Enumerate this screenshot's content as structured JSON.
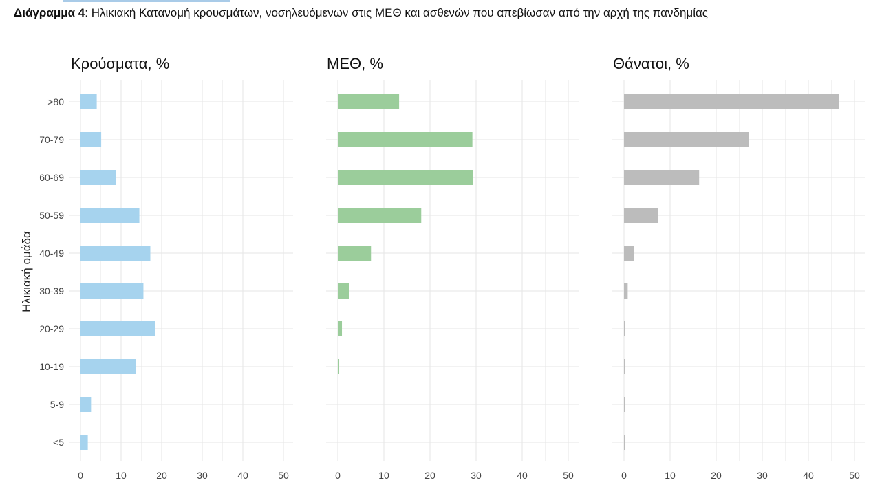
{
  "caption": {
    "label": "Διάγραμμα 4",
    "separator": ":",
    "text": " Ηλικιακή Κατανομή κρουσμάτων, νοσηλευόμενων στις ΜΕΘ και ασθενών που απεβίωσαν από την αρχή της πανδημίας"
  },
  "chart_data": [
    {
      "type": "bar",
      "orientation": "horizontal",
      "title": "Κρούσματα, %",
      "ylabel": "Ηλικιακή ομάδα",
      "xlabel": "",
      "categories": [
        ">80",
        "70-79",
        "60-69",
        "50-59",
        "40-49",
        "30-39",
        "20-29",
        "10-19",
        "5-9",
        "<5"
      ],
      "values": [
        4.0,
        5.1,
        8.7,
        14.5,
        17.2,
        15.5,
        18.4,
        13.6,
        2.6,
        1.8
      ],
      "xlim": [
        0,
        52
      ],
      "xticks": [
        0,
        10,
        20,
        30,
        40,
        50
      ],
      "color": "#a6d3ee",
      "grid": true
    },
    {
      "type": "bar",
      "orientation": "horizontal",
      "title": "ΜΕΘ, %",
      "xlabel": "",
      "categories": [
        ">80",
        "70-79",
        "60-69",
        "50-59",
        "40-49",
        "30-39",
        "20-29",
        "10-19",
        "5-9",
        "<5"
      ],
      "values": [
        13.3,
        29.2,
        29.4,
        18.1,
        7.2,
        2.5,
        0.9,
        0.3,
        0.1,
        0.1
      ],
      "xlim": [
        0,
        52
      ],
      "xticks": [
        0,
        10,
        20,
        30,
        40,
        50
      ],
      "color": "#9bcd9b",
      "grid": true
    },
    {
      "type": "bar",
      "orientation": "horizontal",
      "title": "Θάνατοι, %",
      "xlabel": "",
      "categories": [
        ">80",
        "70-79",
        "60-69",
        "50-59",
        "40-49",
        "30-39",
        "20-29",
        "10-19",
        "5-9",
        "<5"
      ],
      "values": [
        46.7,
        27.1,
        16.3,
        7.4,
        2.2,
        0.8,
        0.1,
        0.1,
        0.0,
        0.1
      ],
      "xlim": [
        0,
        52
      ],
      "xticks": [
        0,
        10,
        20,
        30,
        40,
        50
      ],
      "color": "#bcbcbc",
      "grid": true
    }
  ]
}
